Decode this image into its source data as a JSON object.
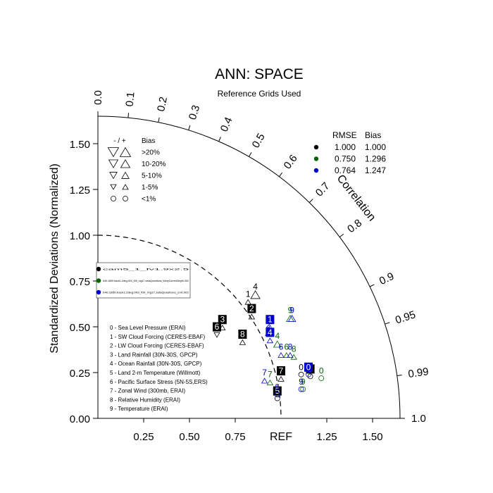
{
  "chart_data": {
    "type": "scatter",
    "subtype": "taylor-diagram",
    "title": "ANN: SPACE",
    "subtitle": "Reference Grids Used",
    "ylabel": "Standardized Deviations (Normalized)",
    "arc_label": "Correlation",
    "ref_label": "REF",
    "radius_range": [
      0,
      1.65
    ],
    "x_ticks": [
      "0.25",
      "0.50",
      "0.75",
      "1.25",
      "1.50"
    ],
    "x_tick_values": [
      0.25,
      0.5,
      0.75,
      1.25,
      1.5
    ],
    "y_ticks": [
      "0.00",
      "0.25",
      "0.50",
      "0.75",
      "1.00",
      "1.25",
      "1.50"
    ],
    "y_tick_values": [
      0,
      0.25,
      0.5,
      0.75,
      1.0,
      1.25,
      1.5
    ],
    "corr_ticks": [
      "0.0",
      "0.1",
      "0.2",
      "0.3",
      "0.4",
      "0.5",
      "0.6",
      "0.7",
      "0.8",
      "0.9",
      "0.95",
      "0.99",
      "1.0"
    ],
    "corr_tick_values": [
      0,
      0.1,
      0.2,
      0.3,
      0.4,
      0.5,
      0.6,
      0.7,
      0.8,
      0.9,
      0.95,
      0.99,
      1.0
    ],
    "bias_legend": {
      "header_sign": "- / +",
      "header": "Bias",
      "rows": [
        {
          "label": ">20%",
          "size": 5
        },
        {
          "label": "10-20%",
          "size": 4
        },
        {
          "label": "5-10%",
          "size": 3
        },
        {
          "label": "1-5%",
          "size": 2
        },
        {
          "label": "<1%",
          "size": 0
        }
      ]
    },
    "case_table": {
      "headers": [
        "RMSE",
        "Bias"
      ],
      "rows": [
        {
          "color": "#000000",
          "rmse": "1.000",
          "bias": "1.000"
        },
        {
          "color": "#006400",
          "rmse": "0.750",
          "bias": "1.296"
        },
        {
          "color": "#0000cd",
          "rmse": "0.764",
          "bias": "1.247"
        }
      ]
    },
    "case_names": [
      {
        "color": "#000000",
        "name": "cam5_1_fv1.9x2.5"
      },
      {
        "color": "#006400",
        "name": "b40.1850.track1.2deg.003_f09_mg17.zetaQuestions_WeryCorrectDepth.002"
      },
      {
        "color": "#0000cd",
        "name": "b40.1850.track1.2deg.003_f09_mg17.zetaQuestions_cmt.002"
      }
    ],
    "variables": [
      "0 - Sea Level Pressure (ERAI)",
      "1 - SW Cloud Forcing (CERES-EBAF)",
      "2 - LW Cloud Forcing (CERES-EBAF)",
      "3 - Land Rainfall (30N-30S, GPCP)",
      "4 - Ocean Rainfall (30N-30S, GPCP)",
      "5 - Land 2-m Temperature (Willmott)",
      "6 - Pacific Surface Stress (5N-5S,ERS)",
      "7 - Zonal Wind (300mb, ERAI)",
      "8 - Relative Humidity (ERAI)",
      "9 - Temperature (ERAI)"
    ],
    "series": [
      {
        "name": "cam5_1_fv1.9x2.5",
        "color": "#000000",
        "points": [
          {
            "label": "0",
            "x": 1.11,
            "y": 0.27,
            "marker": "circle-open",
            "size": 0
          },
          {
            "label": "1",
            "x": 0.82,
            "y": 0.67,
            "marker": "triangle-up",
            "size": 2
          },
          {
            "label": "2",
            "x": 0.84,
            "y": 0.59,
            "marker": "triangle-up",
            "size": 2,
            "boxed": true
          },
          {
            "label": "3",
            "x": 0.68,
            "y": 0.53,
            "marker": "triangle-up",
            "size": 2,
            "boxed": true
          },
          {
            "label": "4",
            "x": 0.86,
            "y": 0.71,
            "marker": "triangle-up",
            "size": 4
          },
          {
            "label": "5",
            "x": 0.98,
            "y": 0.14,
            "marker": "circle-open",
            "size": 0,
            "boxed": true
          },
          {
            "label": "6",
            "x": 0.65,
            "y": 0.49,
            "marker": "triangle-down",
            "size": 2,
            "boxed": true
          },
          {
            "label": "7",
            "x": 1.0,
            "y": 0.25,
            "marker": "triangle-up",
            "size": 2,
            "boxed": true
          },
          {
            "label": "8",
            "x": 0.79,
            "y": 0.45,
            "marker": "triangle-up",
            "size": 2,
            "boxed": true
          },
          {
            "label": "9",
            "x": 1.16,
            "y": 0.26,
            "marker": "circle-open",
            "size": 0,
            "boxed": true
          }
        ]
      },
      {
        "name": "b40.1850.track1.2deg.003_f09_mg17.zetaQuestions_WeryCorrectDepth.002",
        "color": "#006400",
        "points": [
          {
            "label": "0",
            "x": 1.22,
            "y": 0.25,
            "marker": "circle-open",
            "size": 0
          },
          {
            "label": "4",
            "x": 0.98,
            "y": 0.44,
            "marker": "triangle-up",
            "size": 3
          },
          {
            "label": "6",
            "x": 1.03,
            "y": 0.38,
            "marker": "triangle-up",
            "size": 2
          },
          {
            "label": "7",
            "x": 0.94,
            "y": 0.23,
            "marker": "triangle-up",
            "size": 2
          },
          {
            "label": "8",
            "x": 1.07,
            "y": 0.37,
            "marker": "triangle-up",
            "size": 2
          },
          {
            "label": "9",
            "x": 1.12,
            "y": 0.19,
            "marker": "circle-open",
            "size": 0
          },
          {
            "label": "9",
            "x": 1.05,
            "y": 0.58,
            "marker": "triangle-up",
            "size": 3
          }
        ]
      },
      {
        "name": "b40.1850.track1.2deg.003_f09_mg17.zetaQuestions_cmt.002",
        "color": "#0000cd",
        "points": [
          {
            "label": "1",
            "x": 0.94,
            "y": 0.53,
            "marker": "triangle-up",
            "size": 2,
            "boxed": true
          },
          {
            "label": "2",
            "x": 0.93,
            "y": 0.5,
            "marker": "triangle-up",
            "size": 2
          },
          {
            "label": "4",
            "x": 0.94,
            "y": 0.46,
            "marker": "triangle-up",
            "size": 2,
            "boxed": true
          },
          {
            "label": "5",
            "x": 0.98,
            "y": 0.16,
            "marker": "circle-open",
            "size": 0
          },
          {
            "label": "6",
            "x": 1.0,
            "y": 0.38,
            "marker": "triangle-up",
            "size": 2
          },
          {
            "label": "7",
            "x": 0.91,
            "y": 0.24,
            "marker": "triangle-up",
            "size": 2
          },
          {
            "label": "8",
            "x": 1.05,
            "y": 0.38,
            "marker": "triangle-up",
            "size": 2
          },
          {
            "label": "9",
            "x": 1.06,
            "y": 0.58,
            "marker": "triangle-up",
            "size": 3
          },
          {
            "label": "9",
            "x": 1.11,
            "y": 0.19,
            "marker": "circle-open",
            "size": 0
          },
          {
            "label": "0",
            "x": 1.15,
            "y": 0.27,
            "marker": "circle-open",
            "size": 0,
            "boxed": true
          }
        ]
      }
    ]
  }
}
